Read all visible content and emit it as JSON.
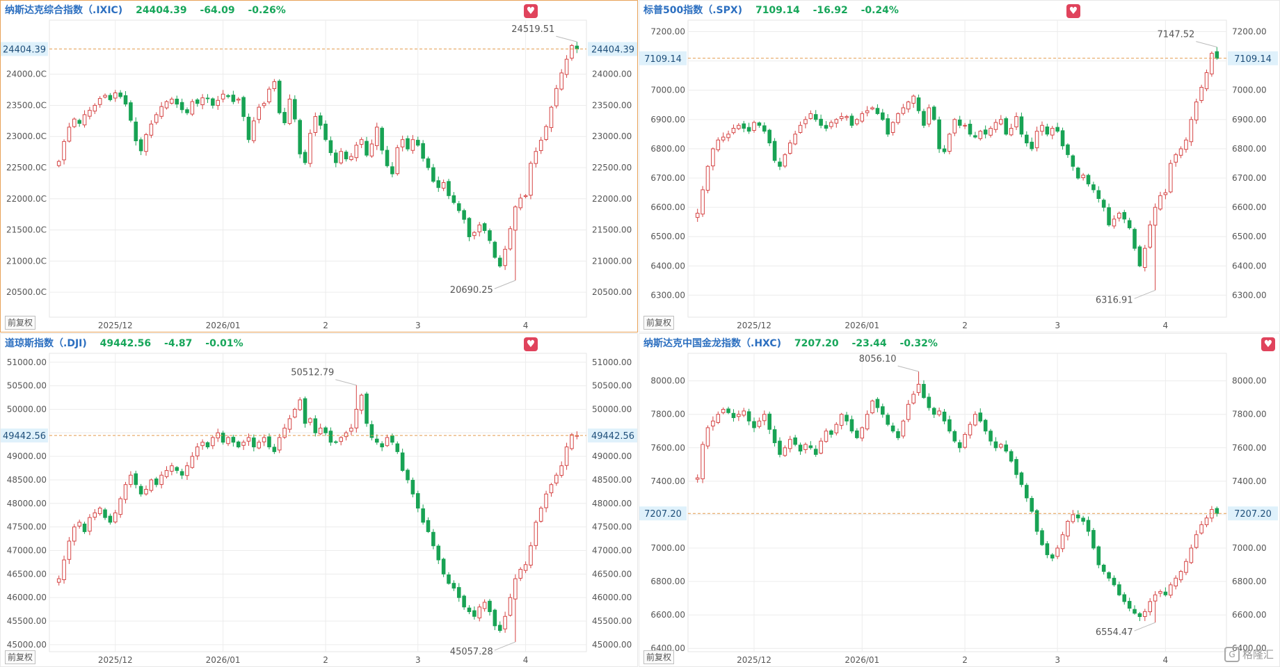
{
  "adjust_label": "前复权",
  "watermark": "格隆汇",
  "colors": {
    "up": "#d54343",
    "down": "#18a354",
    "grid": "#ececec",
    "ref": "#e39a4c",
    "title": "#2c6fc0",
    "change": "#17a65a"
  },
  "panels": [
    {
      "name": "纳斯达克综合指数（.IXIC)",
      "price": "24404.39",
      "change": "-64.09",
      "pct": "-0.26%"
    },
    {
      "name": "标普500指数（.SPX)",
      "price": "7109.14",
      "change": "-16.92",
      "pct": "-0.24%"
    },
    {
      "name": "道琼斯指数（.DJI)",
      "price": "49442.56",
      "change": "-4.87",
      "pct": "-0.01%"
    },
    {
      "name": "纳斯达克中国金龙指数（.HXC)",
      "price": "7207.20",
      "change": "-23.44",
      "pct": "-0.32%"
    }
  ],
  "chart_data": [
    {
      "type": "candlestick",
      "ylim": [
        20100,
        24800
      ],
      "y_ticks": [
        "20500.00",
        "21000.00",
        "21500.00",
        "22000.00",
        "22500.00",
        "23000.00",
        "23500.00",
        "24000.00"
      ],
      "left_ticks": [
        "20500.0C",
        "21000.0C",
        "21500.0C",
        "22000.0C",
        "22500.0C",
        "23000.0C",
        "23500.0C",
        "24000.0C"
      ],
      "x_labels": [
        {
          "i": 11,
          "label": "2025/12"
        },
        {
          "i": 32,
          "label": "2026/01"
        },
        {
          "i": 52,
          "label": "2"
        },
        {
          "i": 70,
          "label": "3"
        },
        {
          "i": 91,
          "label": "4"
        }
      ],
      "last": 24404.39,
      "last_label": "24404.39",
      "high_mark": {
        "i": 101,
        "value": 24519.51,
        "label": "24519.51"
      },
      "low_mark": {
        "i": 89,
        "value": 20690.25,
        "label": "20690.25"
      },
      "closes": [
        22600,
        22920,
        23150,
        23280,
        23210,
        23350,
        23420,
        23500,
        23610,
        23660,
        23590,
        23700,
        23640,
        23520,
        23260,
        22930,
        22770,
        23030,
        23200,
        23350,
        23480,
        23560,
        23600,
        23520,
        23430,
        23380,
        23560,
        23530,
        23620,
        23610,
        23500,
        23580,
        23680,
        23640,
        23560,
        23600,
        23320,
        22950,
        23250,
        23470,
        23530,
        23760,
        23880,
        23380,
        23220,
        23600,
        23280,
        22720,
        22580,
        23050,
        23320,
        23180,
        22950,
        22740,
        22580,
        22760,
        22640,
        22680,
        22860,
        22950,
        22700,
        22880,
        23150,
        22780,
        22530,
        22400,
        22820,
        22950,
        22800,
        22950,
        22860,
        22650,
        22500,
        22280,
        22180,
        22260,
        22050,
        21940,
        21810,
        21670,
        21390,
        21460,
        21580,
        21490,
        21330,
        21060,
        20920,
        21190,
        21520,
        21870,
        22010,
        22050,
        22570,
        22760,
        22940,
        23160,
        23470,
        23770,
        24020,
        24240,
        24460,
        24404
      ]
    },
    {
      "type": "candlestick",
      "ylim": [
        6225,
        7225
      ],
      "y_ticks": [
        "6300.00",
        "6400.00",
        "6500.00",
        "6600.00",
        "6700.00",
        "6800.00",
        "6900.00",
        "7000.00",
        "7100.00",
        "7200.00"
      ],
      "x_labels": [
        {
          "i": 11,
          "label": "2025/12"
        },
        {
          "i": 32,
          "label": "2026/01"
        },
        {
          "i": 52,
          "label": "2"
        },
        {
          "i": 70,
          "label": "3"
        },
        {
          "i": 91,
          "label": "4"
        }
      ],
      "last": 7109.14,
      "last_label": "7109.14",
      "high_mark": {
        "i": 101,
        "value": 7147.52,
        "label": "7147.52"
      },
      "low_mark": {
        "i": 89,
        "value": 6316.91,
        "label": "6316.91"
      },
      "closes": [
        6580,
        6660,
        6740,
        6800,
        6830,
        6840,
        6850,
        6870,
        6880,
        6870,
        6860,
        6890,
        6880,
        6860,
        6820,
        6760,
        6740,
        6780,
        6820,
        6850,
        6880,
        6900,
        6920,
        6900,
        6880,
        6870,
        6890,
        6900,
        6910,
        6910,
        6880,
        6900,
        6920,
        6930,
        6940,
        6920,
        6900,
        6850,
        6890,
        6920,
        6940,
        6960,
        6980,
        6930,
        6880,
        6940,
        6900,
        6800,
        6790,
        6850,
        6900,
        6880,
        6880,
        6850,
        6840,
        6860,
        6850,
        6870,
        6890,
        6900,
        6850,
        6870,
        6910,
        6850,
        6820,
        6800,
        6860,
        6880,
        6850,
        6870,
        6860,
        6810,
        6780,
        6740,
        6700,
        6710,
        6680,
        6660,
        6630,
        6600,
        6540,
        6560,
        6580,
        6560,
        6530,
        6460,
        6400,
        6460,
        6540,
        6600,
        6640,
        6650,
        6750,
        6780,
        6800,
        6830,
        6900,
        6960,
        7010,
        7060,
        7126,
        7109
      ]
    },
    {
      "type": "candlestick",
      "ylim": [
        44850,
        51100
      ],
      "y_ticks": [
        "45000.00",
        "45500.00",
        "46000.00",
        "46500.00",
        "47000.00",
        "47500.00",
        "48000.00",
        "48500.00",
        "49000.00",
        "49500.00",
        "50000.00",
        "50500.00",
        "51000.00"
      ],
      "x_labels": [
        {
          "i": 11,
          "label": "2025/12"
        },
        {
          "i": 32,
          "label": "2026/01"
        },
        {
          "i": 52,
          "label": "2"
        },
        {
          "i": 70,
          "label": "3"
        },
        {
          "i": 91,
          "label": "4"
        }
      ],
      "last": 49442.56,
      "last_label": "49442.56",
      "high_mark": {
        "i": 58,
        "value": 50512.79,
        "label": "50512.79"
      },
      "low_mark": {
        "i": 89,
        "value": 45057.28,
        "label": "45057.28"
      },
      "closes": [
        46400,
        46800,
        47200,
        47500,
        47600,
        47400,
        47700,
        47800,
        47900,
        47700,
        47600,
        47800,
        48100,
        48400,
        48600,
        48400,
        48200,
        48300,
        48500,
        48400,
        48600,
        48700,
        48800,
        48700,
        48600,
        48800,
        49000,
        49200,
        49300,
        49200,
        49400,
        49500,
        49300,
        49400,
        49300,
        49200,
        49300,
        49400,
        49200,
        49300,
        49400,
        49200,
        49100,
        49400,
        49600,
        49800,
        50000,
        50200,
        49700,
        49800,
        49500,
        49600,
        49500,
        49300,
        49300,
        49400,
        49500,
        49600,
        50000,
        50300,
        49700,
        49400,
        49300,
        49200,
        49400,
        49300,
        49100,
        48700,
        48500,
        48200,
        47900,
        47600,
        47400,
        47100,
        46800,
        46500,
        46300,
        46200,
        46000,
        45800,
        45700,
        45600,
        45800,
        45900,
        45700,
        45400,
        45300,
        45600,
        46000,
        46400,
        46600,
        46700,
        47100,
        47600,
        47900,
        48200,
        48400,
        48600,
        48800,
        49200,
        49460,
        49442
      ]
    },
    {
      "type": "candlestick",
      "ylim": [
        6380,
        8140
      ],
      "y_ticks": [
        "6400.00",
        "6600.00",
        "6800.00",
        "7000.00",
        "7200.00",
        "7400.00",
        "7600.00",
        "7800.00",
        "8000.00"
      ],
      "x_labels": [
        {
          "i": 11,
          "label": "2025/12"
        },
        {
          "i": 32,
          "label": "2026/01"
        },
        {
          "i": 52,
          "label": "2"
        },
        {
          "i": 70,
          "label": "3"
        },
        {
          "i": 91,
          "label": "4"
        }
      ],
      "last": 7207.2,
      "last_label": "7207.20",
      "high_mark": {
        "i": 43,
        "value": 8056.1,
        "label": "8056.10"
      },
      "low_mark": {
        "i": 89,
        "value": 6554.47,
        "label": "6554.47"
      },
      "closes": [
        7420,
        7620,
        7720,
        7760,
        7800,
        7830,
        7810,
        7780,
        7800,
        7820,
        7760,
        7720,
        7760,
        7800,
        7710,
        7630,
        7560,
        7600,
        7650,
        7620,
        7580,
        7620,
        7600,
        7560,
        7640,
        7700,
        7680,
        7740,
        7800,
        7760,
        7700,
        7660,
        7720,
        7800,
        7880,
        7840,
        7800,
        7740,
        7700,
        7660,
        7760,
        7860,
        7920,
        7980,
        7900,
        7840,
        7800,
        7820,
        7760,
        7700,
        7640,
        7600,
        7680,
        7740,
        7800,
        7760,
        7700,
        7640,
        7600,
        7620,
        7580,
        7520,
        7440,
        7380,
        7300,
        7220,
        7100,
        7020,
        6960,
        6940,
        7000,
        7080,
        7160,
        7200,
        7180,
        7160,
        7100,
        7000,
        6900,
        6860,
        6820,
        6780,
        6720,
        6680,
        6640,
        6610,
        6590,
        6620,
        6680,
        6720,
        6740,
        6720,
        6780,
        6820,
        6860,
        6920,
        7000,
        7080,
        7140,
        7180,
        7231,
        7207
      ]
    }
  ]
}
